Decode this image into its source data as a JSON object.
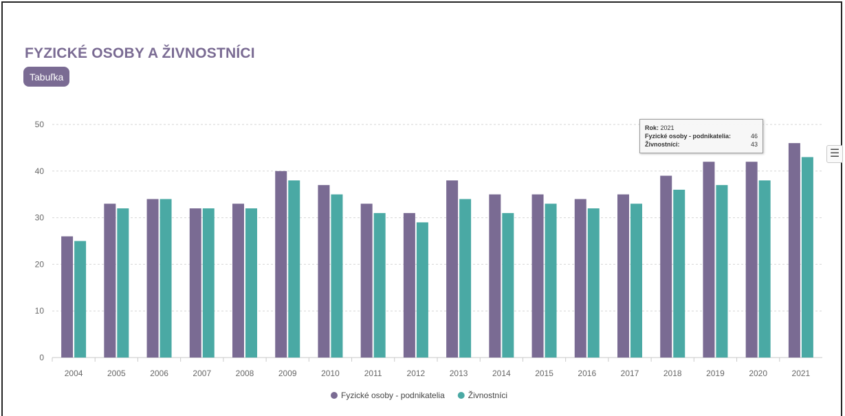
{
  "header": {
    "title": "FYZICKÉ OSOBY A ŽIVNOSTNÍCI",
    "table_button": "Tabuľka",
    "menu_icon": "hamburger-menu-icon"
  },
  "tooltip": {
    "year_label": "Rok:",
    "year_value": "2021",
    "series1_label": "Fyzické osoby - podnikatelia:",
    "series1_value": "46",
    "series2_label": "Živnostníci:",
    "series2_value": "43"
  },
  "chart_data": {
    "type": "bar",
    "title": "FYZICKÉ OSOBY A ŽIVNOSTNÍCI",
    "xlabel": "",
    "ylabel": "",
    "ylim": [
      0,
      50
    ],
    "yticks": [
      0,
      10,
      20,
      30,
      40,
      50
    ],
    "grid": true,
    "legend_position": "bottom-center",
    "categories": [
      "2004",
      "2005",
      "2006",
      "2007",
      "2008",
      "2009",
      "2010",
      "2011",
      "2012",
      "2013",
      "2014",
      "2015",
      "2016",
      "2017",
      "2018",
      "2019",
      "2020",
      "2021"
    ],
    "series": [
      {
        "name": "Fyzické osoby - podnikatelia",
        "color": "#7a6b93",
        "values": [
          26,
          33,
          34,
          32,
          33,
          40,
          37,
          33,
          31,
          38,
          35,
          35,
          34,
          35,
          39,
          42,
          42,
          46
        ]
      },
      {
        "name": "Živnostníci",
        "color": "#4aa9a4",
        "values": [
          25,
          32,
          34,
          32,
          32,
          38,
          35,
          31,
          29,
          34,
          31,
          33,
          32,
          33,
          36,
          37,
          38,
          43
        ]
      }
    ]
  }
}
